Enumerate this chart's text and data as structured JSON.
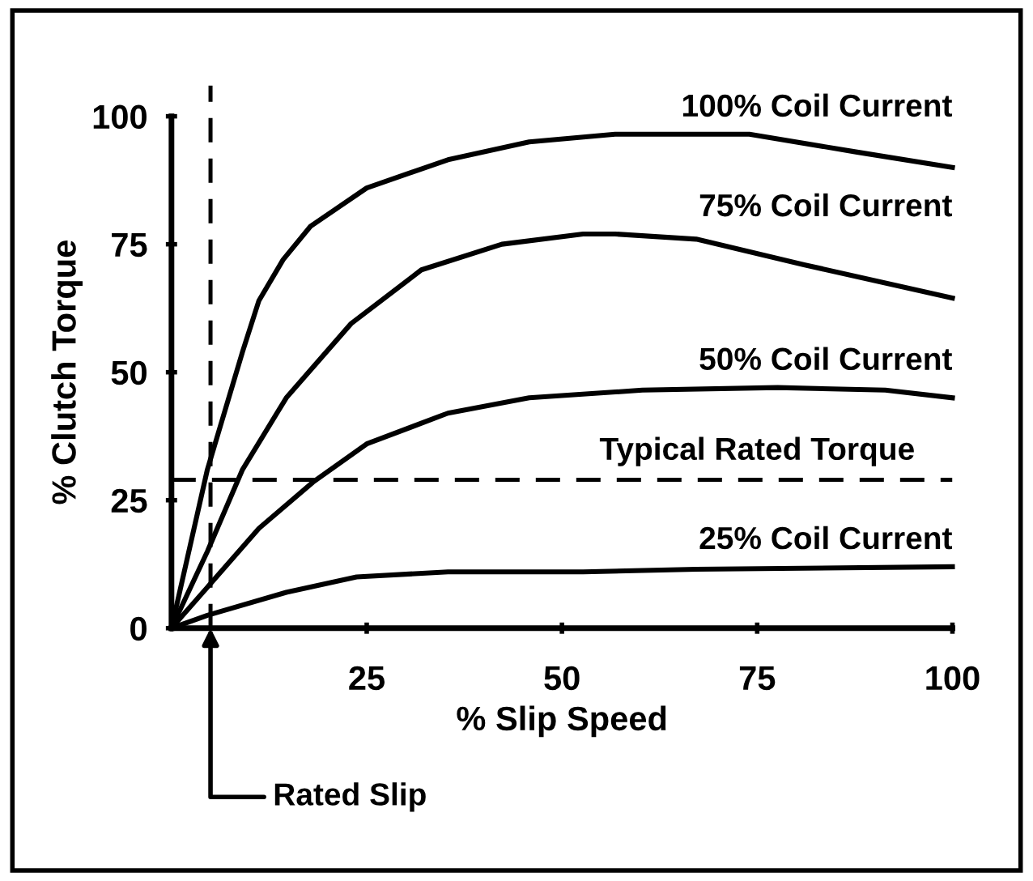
{
  "chart_data": {
    "type": "line",
    "xlabel": "% Slip Speed",
    "ylabel": "% Clutch Torque",
    "xlim": [
      0,
      100
    ],
    "ylim": [
      0,
      100
    ],
    "xticks": [
      25,
      50,
      75,
      100
    ],
    "yticks": [
      0,
      25,
      50,
      75,
      100
    ],
    "grid": false,
    "legend": false,
    "marker": "none",
    "line_style": "solid",
    "series": [
      {
        "name": "100% Coil Current",
        "color": "#000000",
        "x": [
          0,
          4.6,
          9.1,
          11.2,
          14.3,
          17.8,
          25,
          35.4,
          45.8,
          56.8,
          74,
          87.8,
          100
        ],
        "values": [
          0,
          31,
          54,
          64,
          72,
          78.5,
          86,
          91.5,
          95,
          96.5,
          96.5,
          93,
          90
        ]
      },
      {
        "name": "75% Coil Current",
        "color": "#000000",
        "x": [
          0,
          4.6,
          9.1,
          14.7,
          23,
          32,
          42.3,
          52.7,
          56.8,
          67.2,
          81,
          100
        ],
        "values": [
          0,
          15,
          31,
          45,
          59.5,
          70,
          75,
          77,
          77,
          76,
          71,
          64.5
        ]
      },
      {
        "name": "50% Coil Current",
        "color": "#000000",
        "x": [
          0,
          4.6,
          11.2,
          18.1,
          25,
          35.4,
          45.8,
          60.3,
          77.6,
          91.4,
          100
        ],
        "values": [
          0,
          8,
          19.5,
          28.5,
          36,
          42,
          45,
          46.5,
          47,
          46.5,
          45
        ]
      },
      {
        "name": "25% Coil Current",
        "color": "#000000",
        "x": [
          0,
          4.6,
          14.7,
          23.7,
          35.4,
          52.7,
          67.2,
          100
        ],
        "values": [
          0,
          2.5,
          7,
          10,
          11,
          11,
          11.5,
          12
        ]
      }
    ],
    "ref_lines": [
      {
        "axis": "y",
        "value": 29,
        "label": "Typical Rated Torque",
        "color": "#000000",
        "line_style": "dashed"
      },
      {
        "axis": "x",
        "value": 5,
        "label": "Rated Slip",
        "color": "#000000",
        "line_style": "dashed"
      }
    ]
  }
}
